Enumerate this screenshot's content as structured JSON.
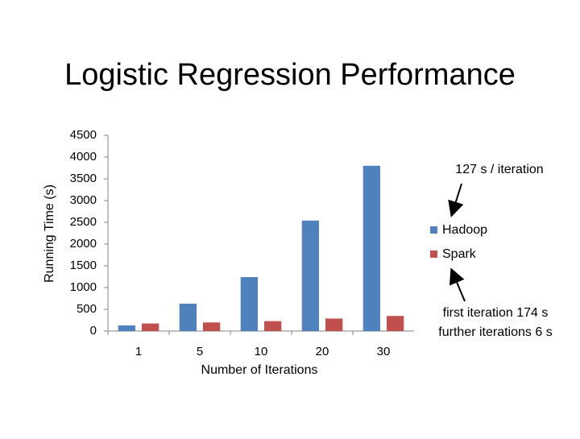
{
  "chart_data": {
    "type": "bar",
    "title": "Logistic Regression Performance",
    "y_label": "Running Time (s)",
    "x_label": "Number of Iterations",
    "categories": [
      "1",
      "5",
      "10",
      "20",
      "30"
    ],
    "series": [
      {
        "name": "Hadoop",
        "color": "#4f81bd",
        "values": [
          130,
          630,
          1240,
          2540,
          3800
        ]
      },
      {
        "name": "Spark",
        "color": "#c0504d",
        "values": [
          174,
          198,
          228,
          288,
          348
        ]
      }
    ],
    "ylim": [
      0,
      4500
    ],
    "yticks": [
      0,
      500,
      1000,
      1500,
      2000,
      2500,
      3000,
      3500,
      4000,
      4500
    ],
    "grid": false,
    "legend": "right",
    "annotations": [
      "127 s / iteration",
      "first iteration 174 s",
      "further iterations 6 s"
    ]
  }
}
